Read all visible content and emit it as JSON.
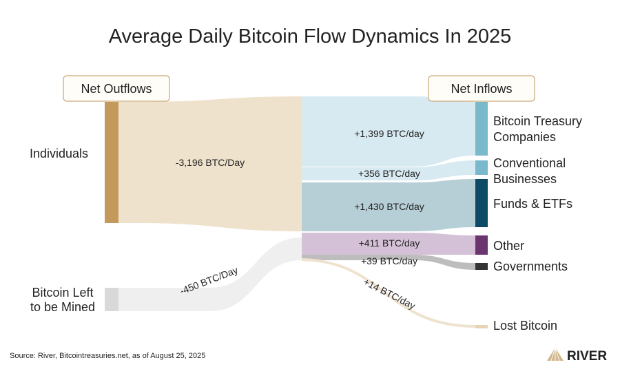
{
  "title": "Average Daily Bitcoin Flow Dynamics In 2025",
  "headers": {
    "left": "Net Outflows",
    "right": "Net Inflows"
  },
  "sources": [
    {
      "label_lines": [
        "Individuals"
      ],
      "color": "#c49a5c",
      "flow_label": "-3,196 BTC/Day",
      "value": -3196
    },
    {
      "label_lines": [
        "Bitcoin Left",
        "to be Mined"
      ],
      "color": "#d9d9d9",
      "flow_label": "-450 BTC/Day",
      "value": -450
    }
  ],
  "targets": [
    {
      "label_lines": [
        "Bitcoin Treasury",
        "Companies"
      ],
      "color": "#7ab8cc",
      "flow_color": "#d8eaf1",
      "flow_label": "+1,399 BTC/day",
      "value": 1399
    },
    {
      "label_lines": [
        "Conventional",
        "Businesses"
      ],
      "color": "#7ab8cc",
      "flow_color": "#d8eaf1",
      "flow_label": "+356 BTC/day",
      "value": 356
    },
    {
      "label_lines": [
        "Funds & ETFs"
      ],
      "color": "#0d4a63",
      "flow_color": "#b6ced6",
      "flow_label": "+1,430 BTC/day",
      "value": 1430
    },
    {
      "label_lines": [
        "Other"
      ],
      "color": "#6b3570",
      "flow_color": "#d5c1d7",
      "flow_label": "+411 BTC/day",
      "value": 411
    },
    {
      "label_lines": [
        "Governments"
      ],
      "color": "#333333",
      "flow_color": "#bdbdbd",
      "flow_label": "+39 BTC/day",
      "value": 39
    },
    {
      "label_lines": [
        "Lost Bitcoin"
      ],
      "color": "#e8d3b5",
      "flow_color": "#efe3d0",
      "flow_label": "+14 BTC/day",
      "value": 14
    }
  ],
  "source_note": "Source: River, Bitcointreasuries.net, as of August 25, 2025",
  "logo": {
    "text": "RIVER",
    "color": "#c9a877"
  }
}
